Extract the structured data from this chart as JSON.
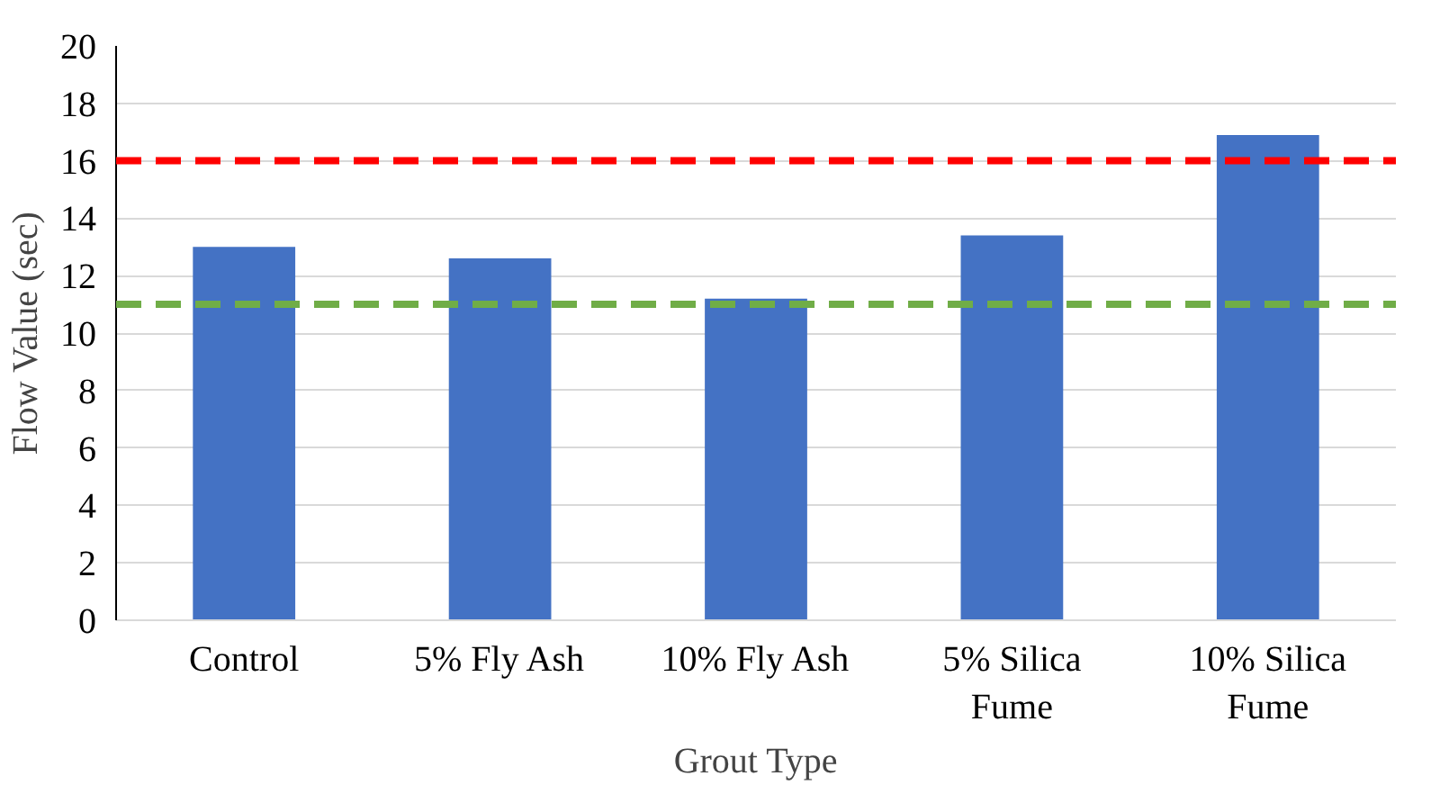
{
  "chart_data": {
    "type": "bar",
    "xlabel": "Grout Type",
    "ylabel": "Flow Value (sec)",
    "categories": [
      "Control",
      "5% Fly Ash",
      "10% Fly Ash",
      "5% Silica Fume",
      "10% Silica Fume"
    ],
    "values": [
      13.0,
      12.6,
      11.2,
      13.4,
      16.9
    ],
    "color": "#4472c4",
    "ylim": [
      0,
      20
    ],
    "yticks": [
      0,
      2,
      4,
      6,
      8,
      10,
      12,
      14,
      16,
      18,
      20
    ],
    "grid": "y",
    "ref_lines": [
      {
        "axis": "y",
        "value": 16,
        "color": "#ff0000",
        "line_style": "dashed"
      },
      {
        "axis": "y",
        "value": 11,
        "color": "#70ad47",
        "line_style": "dashed"
      }
    ]
  }
}
